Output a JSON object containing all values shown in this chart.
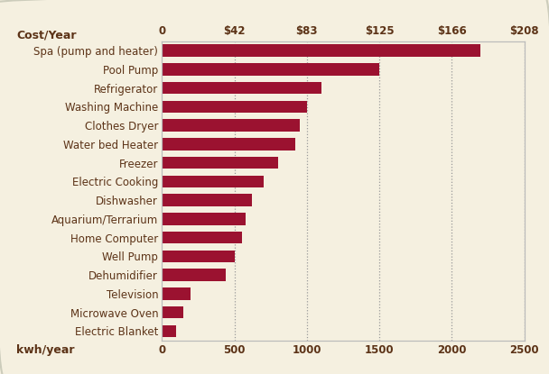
{
  "categories": [
    "Electric Blanket",
    "Microwave Oven",
    "Television",
    "Dehumidifier",
    "Well Pump",
    "Home Computer",
    "Aquarium/Terrarium",
    "Dishwasher",
    "Electric Cooking",
    "Freezer",
    "Water bed Heater",
    "Clothes Dryer",
    "Washing Machine",
    "Refrigerator",
    "Pool Pump",
    "Spa (pump and heater)"
  ],
  "values": [
    100,
    150,
    200,
    440,
    500,
    550,
    580,
    620,
    700,
    800,
    920,
    950,
    1000,
    1100,
    1500,
    2200
  ],
  "bar_color": "#9B1230",
  "background_color": "#F5F0E0",
  "xlabel": "kwh/year",
  "cost_label": "Cost/Year",
  "top_ticks": [
    0,
    500,
    1000,
    1500,
    2000,
    2500
  ],
  "top_tick_labels": [
    "0",
    "$42",
    "$83",
    "$125",
    "$166",
    "$208"
  ],
  "bottom_ticks": [
    0,
    500,
    1000,
    1500,
    2000,
    2500
  ],
  "bottom_tick_labels": [
    "0",
    "500",
    "1000",
    "1500",
    "2000",
    "2500"
  ],
  "xlim": [
    0,
    2500
  ],
  "grid_color": "#999999",
  "label_color": "#5C3317",
  "axis_label_fontsize": 9,
  "label_fontsize": 8.5,
  "tick_fontsize": 8.5
}
